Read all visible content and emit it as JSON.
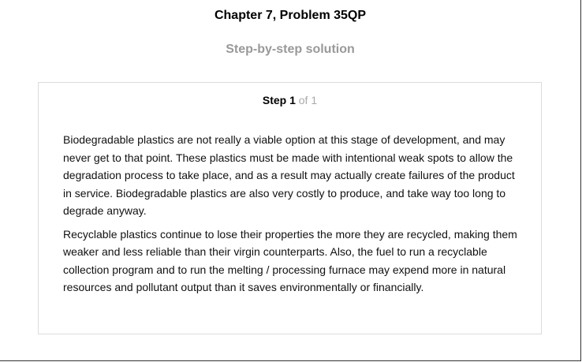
{
  "header": {
    "title": "Chapter 7, Problem 35QP",
    "subtitle": "Step-by-step solution"
  },
  "step": {
    "label": "Step 1",
    "of_text": "of 1",
    "paragraphs": [
      "Biodegradable plastics are not really a viable option at this stage of development, and may never get to that point. These plastics must be made with intentional weak spots to allow the degradation process to take place, and as a result may actually create failures of the product in service. Biodegradable plastics are also very costly to produce, and take way too long to degrade anyway.",
      "Recyclable plastics continue to lose their properties the more they are recycled, making them weaker and less reliable than their virgin counterparts. Also, the fuel to run a recyclable collection program and to run the melting / processing furnace may expend more in natural resources and pollutant output than it saves environmentally or financially."
    ]
  }
}
